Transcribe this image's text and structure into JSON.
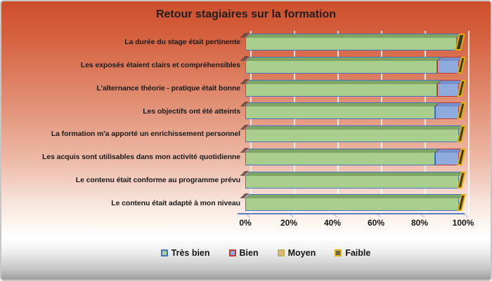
{
  "chart_data": {
    "type": "bar",
    "stacked": true,
    "orientation": "horizontal",
    "style": "3d",
    "title": "Retour stagiaires sur la formation",
    "categories": [
      "La durée du stage était pertinente",
      "Les exposés étaient clairs et compréhensibles",
      "L’alternance théorie - pratique était bonne",
      "Les objectifs ont été atteints",
      "La formation m'a apporté un enrichissement personnel",
      "Les acquis sont utilisables dans mon activité quotidienne",
      "Le contenu était conforme au programme prévu",
      "Le contenu était adapté à mon niveau"
    ],
    "series": [
      {
        "name": "Très bien",
        "fill": "#a9cf8e",
        "border": "#4472c4",
        "dark": "#7ea563",
        "values": [
          97,
          88,
          88,
          87,
          98,
          87,
          98,
          98
        ]
      },
      {
        "name": "Bien",
        "fill": "#8faadc",
        "border": "#bd3a30",
        "dark": "#7590cb",
        "values": [
          0,
          10,
          10,
          11,
          0,
          11,
          0,
          0
        ]
      },
      {
        "name": "Moyen",
        "fill": "#f4b183",
        "border": "#b1b64e",
        "dark": "#d69a6e",
        "values": [
          0,
          0,
          0,
          0,
          0,
          0,
          0,
          0
        ]
      },
      {
        "name": "Faible",
        "fill": "#6b6353",
        "border": "#e3ae00",
        "dark": "#3d392c",
        "values": [
          3,
          2,
          2,
          2,
          2,
          2,
          2,
          2
        ]
      }
    ],
    "x_ticks": [
      "0%",
      "20%",
      "40%",
      "60%",
      "80%",
      "100%"
    ],
    "xlim": [
      0,
      100
    ],
    "grid": true,
    "gridline_color": "#f3e8e2",
    "axis_line_color": "#5b7fc0",
    "legend_position": "bottom",
    "background": {
      "top": "#ce4e2b",
      "middle": "#eebcaa",
      "bottom": "#9e9ea0"
    }
  }
}
